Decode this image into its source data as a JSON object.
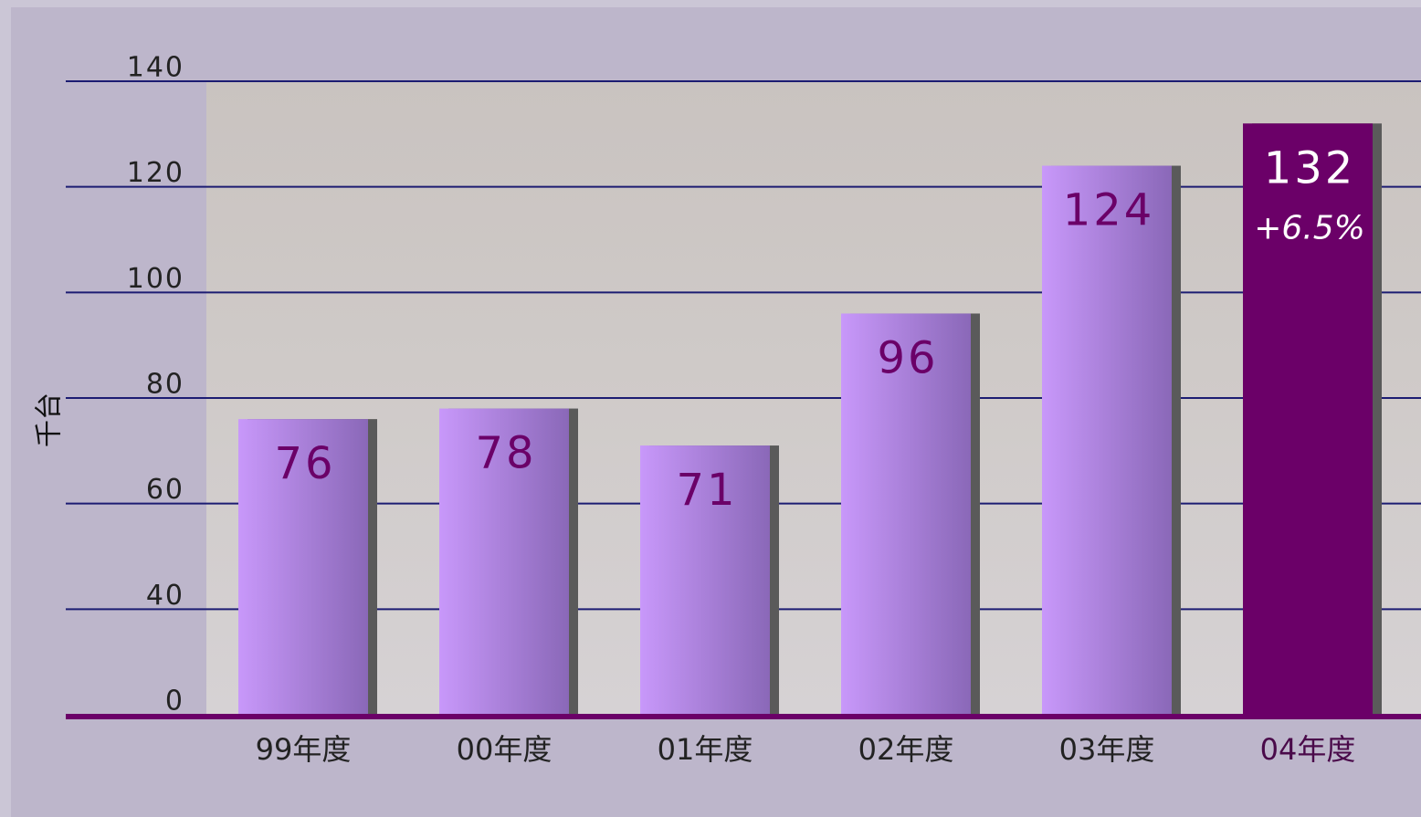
{
  "chart_data": {
    "type": "bar",
    "y_axis_label": "千台",
    "categories": [
      "99年度",
      "00年度",
      "01年度",
      "02年度",
      "03年度",
      "04年度"
    ],
    "values": [
      76,
      78,
      71,
      96,
      124,
      132
    ],
    "colors": [
      "#b98ee8",
      "#b98ee8",
      "#b98ee8",
      "#b98ee8",
      "#b98ee8",
      "#6b0068"
    ],
    "annotation": "+6.5%",
    "ylim": [
      20,
      140
    ],
    "yticks": [
      {
        "value": 20,
        "label": "0"
      },
      40,
      60,
      80,
      100,
      120,
      140
    ],
    "grid": true
  }
}
